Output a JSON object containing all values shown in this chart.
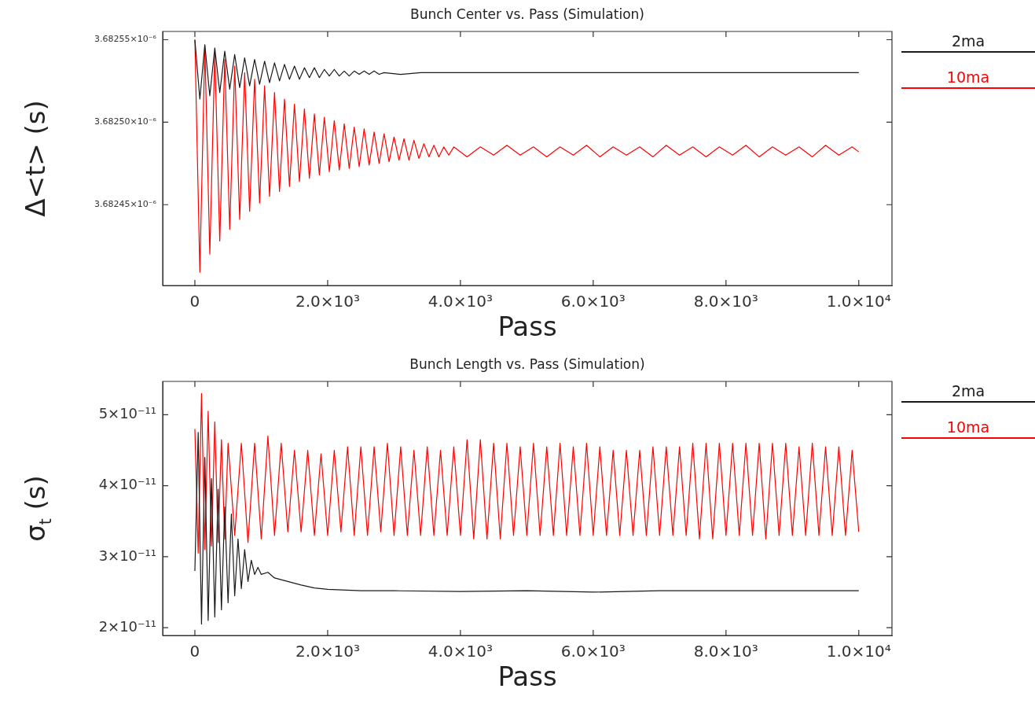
{
  "chart_data": [
    {
      "type": "line",
      "title": "Bunch Center vs. Pass (Simulation)",
      "xlabel": "Pass",
      "ylabel": "Δ<t> (s)",
      "xlim": [
        -485,
        10500
      ],
      "xticks": [
        0,
        {
          "value": 2000,
          "label": "2.0×10³"
        },
        {
          "value": 4000,
          "label": "4.0×10³"
        },
        {
          "value": 6000,
          "label": "6.0×10³"
        },
        {
          "value": 8000,
          "label": "8.0×10³"
        },
        {
          "value": 10000,
          "label": "1.0×10⁴"
        }
      ],
      "ylim": [
        3.682401e-06,
        3.682555e-06
      ],
      "yticks": [
        {
          "value": 3.68245e-06,
          "label": "3.68245×10⁻⁶"
        },
        {
          "value": 3.6825e-06,
          "label": "3.68250×10⁻⁶"
        },
        {
          "value": 3.68255e-06,
          "label": "3.68255×10⁻⁶"
        }
      ],
      "grid": false,
      "legend": "right",
      "marker": "none",
      "line_style": "solid",
      "series": [
        {
          "name": "2ma",
          "color": "#1a1a1a",
          "x": [
            0,
            75,
            150,
            225,
            300,
            375,
            450,
            525,
            600,
            675,
            750,
            825,
            900,
            975,
            1050,
            1125,
            1200,
            1275,
            1350,
            1425,
            1500,
            1575,
            1650,
            1725,
            1800,
            1875,
            1950,
            2025,
            2100,
            2175,
            2250,
            2325,
            2400,
            2475,
            2550,
            2625,
            2700,
            2775,
            2850,
            3100,
            3400,
            4000,
            5000,
            6000,
            7000,
            8000,
            9000,
            10000
          ],
          "values": [
            3.68255e-06,
            3.682514e-06,
            3.682547e-06,
            3.682516e-06,
            3.682545e-06,
            3.682518e-06,
            3.682543e-06,
            3.68252e-06,
            3.682541e-06,
            3.682521e-06,
            3.682539e-06,
            3.682522e-06,
            3.682538e-06,
            3.682523e-06,
            3.682537e-06,
            3.682524e-06,
            3.682536e-06,
            3.682525e-06,
            3.682535e-06,
            3.682526e-06,
            3.682534e-06,
            3.682526e-06,
            3.682533e-06,
            3.682527e-06,
            3.682533e-06,
            3.682527e-06,
            3.682532e-06,
            3.682528e-06,
            3.682532e-06,
            3.682528e-06,
            3.682531e-06,
            3.682528e-06,
            3.682531e-06,
            3.682529e-06,
            3.682531e-06,
            3.682529e-06,
            3.682531e-06,
            3.682529e-06,
            3.68253e-06,
            3.682529e-06,
            3.68253e-06,
            3.68253e-06,
            3.68253e-06,
            3.68253e-06,
            3.68253e-06,
            3.68253e-06,
            3.68253e-06,
            3.68253e-06
          ]
        },
        {
          "name": "10ma",
          "color": "#ff0000",
          "x": [
            0,
            75,
            150,
            225,
            300,
            375,
            450,
            525,
            600,
            675,
            750,
            825,
            900,
            975,
            1050,
            1125,
            1200,
            1275,
            1350,
            1425,
            1500,
            1575,
            1650,
            1725,
            1800,
            1875,
            1950,
            2025,
            2100,
            2175,
            2250,
            2325,
            2400,
            2475,
            2550,
            2625,
            2700,
            2775,
            2850,
            2925,
            3000,
            3075,
            3150,
            3225,
            3300,
            3375,
            3450,
            3525,
            3600,
            3675,
            3750,
            3825,
            3900,
            4100,
            4300,
            4500,
            4700,
            4900,
            5100,
            5300,
            5500,
            5700,
            5900,
            6100,
            6300,
            6500,
            6700,
            6900,
            7100,
            7300,
            7500,
            7700,
            7900,
            8100,
            8300,
            8500,
            8700,
            8900,
            9100,
            9300,
            9500,
            9700,
            9900,
            10000
          ],
          "values": [
            3.68255e-06,
            3.682409e-06,
            3.682546e-06,
            3.68242e-06,
            3.682542e-06,
            3.682428e-06,
            3.682538e-06,
            3.682435e-06,
            3.682534e-06,
            3.682441e-06,
            3.68253e-06,
            3.682446e-06,
            3.682526e-06,
            3.682451e-06,
            3.682522e-06,
            3.682455e-06,
            3.682518e-06,
            3.682458e-06,
            3.682514e-06,
            3.682461e-06,
            3.682511e-06,
            3.682464e-06,
            3.682508e-06,
            3.682466e-06,
            3.682505e-06,
            3.682468e-06,
            3.682503e-06,
            3.68247e-06,
            3.682501e-06,
            3.682471e-06,
            3.682499e-06,
            3.682472e-06,
            3.682497e-06,
            3.682473e-06,
            3.682496e-06,
            3.682474e-06,
            3.682494e-06,
            3.682475e-06,
            3.682493e-06,
            3.682476e-06,
            3.682491e-06,
            3.682477e-06,
            3.68249e-06,
            3.682477e-06,
            3.682489e-06,
            3.682478e-06,
            3.682487e-06,
            3.682479e-06,
            3.682486e-06,
            3.682479e-06,
            3.682485e-06,
            3.68248e-06,
            3.682485e-06,
            3.682479e-06,
            3.682485e-06,
            3.68248e-06,
            3.682486e-06,
            3.68248e-06,
            3.682485e-06,
            3.682479e-06,
            3.682485e-06,
            3.68248e-06,
            3.682486e-06,
            3.682479e-06,
            3.682485e-06,
            3.68248e-06,
            3.682485e-06,
            3.682479e-06,
            3.682486e-06,
            3.68248e-06,
            3.682485e-06,
            3.682479e-06,
            3.682485e-06,
            3.68248e-06,
            3.682486e-06,
            3.682479e-06,
            3.682485e-06,
            3.68248e-06,
            3.682485e-06,
            3.682479e-06,
            3.682486e-06,
            3.68248e-06,
            3.682485e-06,
            3.682482e-06
          ]
        }
      ]
    },
    {
      "type": "line",
      "title": "Bunch Length vs. Pass (Simulation)",
      "xlabel": "Pass",
      "ylabel": "σ$_{t}$ (s)",
      "xlim": [
        -485,
        10500
      ],
      "xticks": [
        0,
        {
          "value": 2000,
          "label": "2.0×10³"
        },
        {
          "value": 4000,
          "label": "4.0×10³"
        },
        {
          "value": 6000,
          "label": "6.0×10³"
        },
        {
          "value": 8000,
          "label": "8.0×10³"
        },
        {
          "value": 10000,
          "label": "1.0×10⁴"
        }
      ],
      "ylim": [
        1.89e-11,
        5.47e-11
      ],
      "yticks": [
        {
          "value": 2e-11,
          "label": "2×10⁻¹¹"
        },
        {
          "value": 3e-11,
          "label": "3×10⁻¹¹"
        },
        {
          "value": 4e-11,
          "label": "4×10⁻¹¹"
        },
        {
          "value": 5e-11,
          "label": "5×10⁻¹¹"
        }
      ],
      "grid": false,
      "legend": "right",
      "marker": "none",
      "line_style": "solid",
      "series": [
        {
          "name": "2ma",
          "color": "#1a1a1a",
          "x": [
            0,
            50,
            100,
            150,
            200,
            250,
            300,
            350,
            400,
            450,
            500,
            550,
            600,
            650,
            700,
            750,
            800,
            850,
            900,
            950,
            1000,
            1100,
            1200,
            1400,
            1600,
            1800,
            2000,
            2500,
            3000,
            4000,
            5000,
            6000,
            7000,
            8000,
            9000,
            10000
          ],
          "values": [
            2.8e-11,
            4.75e-11,
            2.05e-11,
            4.4e-11,
            2.1e-11,
            4.1e-11,
            2.15e-11,
            3.95e-11,
            2.25e-11,
            3.7e-11,
            2.35e-11,
            3.6e-11,
            2.45e-11,
            3.25e-11,
            2.55e-11,
            3.1e-11,
            2.65e-11,
            2.95e-11,
            2.75e-11,
            2.85e-11,
            2.75e-11,
            2.78e-11,
            2.7e-11,
            2.65e-11,
            2.6e-11,
            2.56e-11,
            2.54e-11,
            2.52e-11,
            2.52e-11,
            2.51e-11,
            2.52e-11,
            2.5e-11,
            2.52e-11,
            2.52e-11,
            2.52e-11,
            2.52e-11
          ]
        },
        {
          "name": "10ma",
          "color": "#ff0000",
          "x": [
            0,
            50,
            100,
            150,
            200,
            250,
            300,
            350,
            400,
            450,
            500,
            600,
            700,
            800,
            900,
            1000,
            1100,
            1200,
            1300,
            1400,
            1500,
            1600,
            1700,
            1800,
            1900,
            2000,
            2100,
            2200,
            2300,
            2400,
            2500,
            2600,
            2700,
            2800,
            2900,
            3000,
            3100,
            3200,
            3300,
            3400,
            3500,
            3600,
            3700,
            3800,
            3900,
            4000,
            4100,
            4200,
            4300,
            4400,
            4500,
            4600,
            4700,
            4800,
            4900,
            5000,
            5100,
            5200,
            5300,
            5400,
            5500,
            5600,
            5700,
            5800,
            5900,
            6000,
            6100,
            6200,
            6300,
            6400,
            6500,
            6600,
            6700,
            6800,
            6900,
            7000,
            7100,
            7200,
            7300,
            7400,
            7500,
            7600,
            7700,
            7800,
            7900,
            8000,
            8100,
            8200,
            8300,
            8400,
            8500,
            8600,
            8700,
            8800,
            8900,
            9000,
            9100,
            9200,
            9300,
            9400,
            9500,
            9600,
            9700,
            9800,
            9900,
            10000
          ],
          "values": [
            4.8e-11,
            3.05e-11,
            5.3e-11,
            3.1e-11,
            5.05e-11,
            3.15e-11,
            4.9e-11,
            3.2e-11,
            4.65e-11,
            3.25e-11,
            4.6e-11,
            3.3e-11,
            4.6e-11,
            3.2e-11,
            4.6e-11,
            3.25e-11,
            4.7e-11,
            3.3e-11,
            4.6e-11,
            3.35e-11,
            4.5e-11,
            3.35e-11,
            4.5e-11,
            3.3e-11,
            4.45e-11,
            3.3e-11,
            4.5e-11,
            3.35e-11,
            4.55e-11,
            3.3e-11,
            4.55e-11,
            3.3e-11,
            4.55e-11,
            3.35e-11,
            4.6e-11,
            3.3e-11,
            4.55e-11,
            3.3e-11,
            4.5e-11,
            3.3e-11,
            4.55e-11,
            3.3e-11,
            4.5e-11,
            3.3e-11,
            4.55e-11,
            3.3e-11,
            4.65e-11,
            3.25e-11,
            4.65e-11,
            3.25e-11,
            4.6e-11,
            3.25e-11,
            4.6e-11,
            3.3e-11,
            4.55e-11,
            3.3e-11,
            4.6e-11,
            3.3e-11,
            4.55e-11,
            3.3e-11,
            4.6e-11,
            3.3e-11,
            4.55e-11,
            3.3e-11,
            4.6e-11,
            3.3e-11,
            4.55e-11,
            3.3e-11,
            4.5e-11,
            3.3e-11,
            4.5e-11,
            3.3e-11,
            4.5e-11,
            3.3e-11,
            4.55e-11,
            3.3e-11,
            4.55e-11,
            3.3e-11,
            4.55e-11,
            3.3e-11,
            4.6e-11,
            3.25e-11,
            4.6e-11,
            3.25e-11,
            4.6e-11,
            3.3e-11,
            4.6e-11,
            3.3e-11,
            4.6e-11,
            3.3e-11,
            4.6e-11,
            3.25e-11,
            4.6e-11,
            3.3e-11,
            4.6e-11,
            3.3e-11,
            4.55e-11,
            3.3e-11,
            4.6e-11,
            3.3e-11,
            4.55e-11,
            3.3e-11,
            4.55e-11,
            3.3e-11,
            4.5e-11,
            3.35e-11
          ]
        }
      ]
    }
  ]
}
